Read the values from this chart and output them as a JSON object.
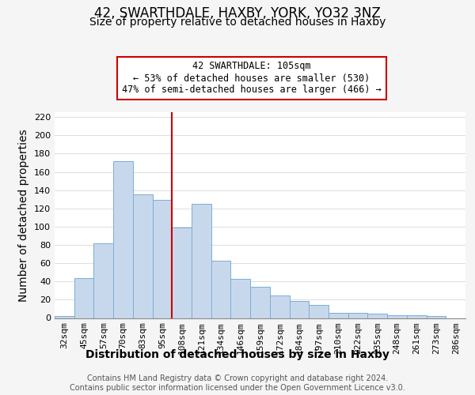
{
  "title": "42, SWARTHDALE, HAXBY, YORK, YO32 3NZ",
  "subtitle": "Size of property relative to detached houses in Haxby",
  "xlabel": "Distribution of detached houses by size in Haxby",
  "ylabel": "Number of detached properties",
  "categories": [
    "32sqm",
    "45sqm",
    "57sqm",
    "70sqm",
    "83sqm",
    "95sqm",
    "108sqm",
    "121sqm",
    "134sqm",
    "146sqm",
    "159sqm",
    "172sqm",
    "184sqm",
    "197sqm",
    "210sqm",
    "222sqm",
    "235sqm",
    "248sqm",
    "261sqm",
    "273sqm",
    "286sqm"
  ],
  "values": [
    2,
    44,
    82,
    172,
    135,
    129,
    99,
    125,
    63,
    43,
    34,
    25,
    19,
    14,
    6,
    6,
    5,
    3,
    3,
    2,
    0
  ],
  "bar_color": "#c8d8ec",
  "bar_edge_color": "#7aaed4",
  "vline_x_index": 6,
  "vline_color": "#cc0000",
  "annotation_text": "42 SWARTHDALE: 105sqm\n← 53% of detached houses are smaller (530)\n47% of semi-detached houses are larger (466) →",
  "annotation_box_color": "#ffffff",
  "annotation_box_edge": "#cc0000",
  "ylim": [
    0,
    225
  ],
  "yticks": [
    0,
    20,
    40,
    60,
    80,
    100,
    120,
    140,
    160,
    180,
    200,
    220
  ],
  "footer1": "Contains HM Land Registry data © Crown copyright and database right 2024.",
  "footer2": "Contains public sector information licensed under the Open Government Licence v3.0.",
  "bg_color": "#f5f5f5",
  "plot_bg_color": "#ffffff",
  "title_fontsize": 12,
  "subtitle_fontsize": 10,
  "axis_label_fontsize": 10,
  "tick_fontsize": 8,
  "footer_fontsize": 7
}
